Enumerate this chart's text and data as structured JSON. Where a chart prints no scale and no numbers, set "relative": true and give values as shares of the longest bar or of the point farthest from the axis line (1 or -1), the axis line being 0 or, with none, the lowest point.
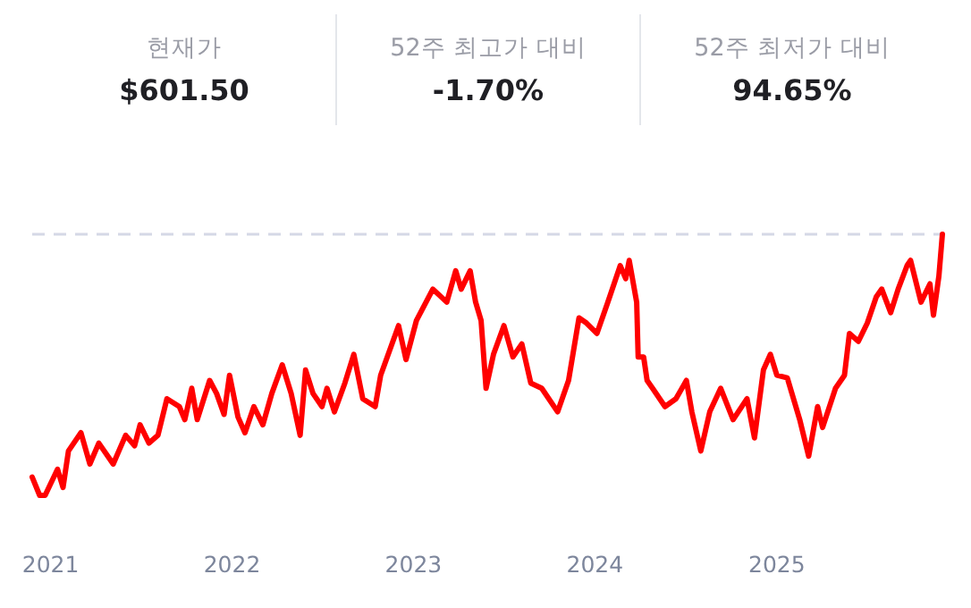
{
  "chart_data": [
    {
      "type": "other",
      "categories": [
        "현재가",
        "52주 최고가 대비",
        "52주 최저가 대비"
      ],
      "value_labels": [
        "$601.50",
        "-1.70%",
        "94.65%"
      ]
    },
    {
      "type": "line",
      "relative": true,
      "color": "#ff0000",
      "x": [
        "2020-11-25",
        "2020-12-10",
        "2020-12-21",
        "2021-01-15",
        "2021-01-26",
        "2021-02-06",
        "2021-03-03",
        "2021-03-21",
        "2021-04-08",
        "2021-05-07",
        "2021-06-01",
        "2021-06-19",
        "2021-06-30",
        "2021-07-18",
        "2021-08-05",
        "2021-08-23",
        "2021-09-17",
        "2021-09-28",
        "2021-10-12",
        "2021-10-23",
        "2021-11-17",
        "2021-12-01",
        "2021-12-16",
        "2021-12-27",
        "2022-01-13",
        "2022-01-27",
        "2022-02-14",
        "2022-03-04",
        "2022-03-22",
        "2022-04-12",
        "2022-04-30",
        "2022-05-18",
        "2022-05-29",
        "2022-06-13",
        "2022-07-01",
        "2022-07-11",
        "2022-07-26",
        "2022-08-16",
        "2022-09-03",
        "2022-09-21",
        "2022-10-16",
        "2022-10-27",
        "2022-12-02",
        "2022-12-17",
        "2023-01-07",
        "2023-02-09",
        "2023-03-09",
        "2023-03-27",
        "2023-04-07",
        "2023-04-25",
        "2023-05-06",
        "2023-05-17",
        "2023-05-27",
        "2023-06-11",
        "2023-07-02",
        "2023-07-20",
        "2023-08-07",
        "2023-08-25",
        "2023-09-16",
        "2023-10-18",
        "2023-11-09",
        "2023-11-30",
        "2023-12-15",
        "2024-01-05",
        "2024-01-27",
        "2024-02-21",
        "2024-03-03",
        "2024-03-10",
        "2024-03-25",
        "2024-03-28",
        "2024-04-08",
        "2024-04-15",
        "2024-04-26",
        "2024-05-21",
        "2024-06-12",
        "2024-07-03",
        "2024-07-14",
        "2024-08-01",
        "2024-08-19",
        "2024-09-10",
        "2024-10-05",
        "2024-11-02",
        "2024-11-17",
        "2024-12-05",
        "2024-12-19",
        "2025-01-01",
        "2025-01-22",
        "2025-02-16",
        "2025-03-06",
        "2025-03-24",
        "2025-04-03",
        "2025-04-29",
        "2025-05-17",
        "2025-05-27",
        "2025-06-14",
        "2025-07-02",
        "2025-07-20",
        "2025-07-31",
        "2025-08-18",
        "2025-09-02",
        "2025-09-20",
        "2025-09-27",
        "2025-10-18",
        "2025-11-05",
        "2025-11-12",
        "2025-11-23",
        "2025-11-30"
      ],
      "values": [
        0.07,
        0,
        0,
        0.1,
        0.03,
        0.17,
        0.24,
        0.12,
        0.2,
        0.12,
        0.23,
        0.19,
        0.27,
        0.2,
        0.23,
        0.37,
        0.34,
        0.29,
        0.41,
        0.29,
        0.44,
        0.39,
        0.31,
        0.46,
        0.3,
        0.24,
        0.34,
        0.27,
        0.39,
        0.5,
        0.39,
        0.23,
        0.48,
        0.39,
        0.34,
        0.41,
        0.32,
        0.43,
        0.54,
        0.37,
        0.34,
        0.46,
        0.65,
        0.52,
        0.67,
        0.79,
        0.74,
        0.86,
        0.79,
        0.86,
        0.74,
        0.67,
        0.41,
        0.54,
        0.65,
        0.53,
        0.58,
        0.43,
        0.41,
        0.32,
        0.44,
        0.68,
        0.66,
        0.62,
        0.74,
        0.88,
        0.83,
        0.9,
        0.74,
        0.53,
        0.53,
        0.44,
        0.41,
        0.34,
        0.37,
        0.44,
        0.32,
        0.17,
        0.32,
        0.41,
        0.29,
        0.37,
        0.22,
        0.48,
        0.54,
        0.46,
        0.45,
        0.29,
        0.15,
        0.34,
        0.26,
        0.41,
        0.46,
        0.62,
        0.59,
        0.66,
        0.76,
        0.79,
        0.7,
        0.79,
        0.88,
        0.9,
        0.74,
        0.81,
        0.69,
        0.84,
        1
      ],
      "xlim": [
        "2020-11-25",
        "2025-11-30"
      ],
      "xticks": [
        {
          "value": "2021-01-01",
          "label": "2021"
        },
        {
          "value": "2022-01-01",
          "label": "2022"
        },
        {
          "value": "2023-01-01",
          "label": "2023"
        },
        {
          "value": "2024-01-01",
          "label": "2024"
        },
        {
          "value": "2025-01-01",
          "label": "2025"
        }
      ],
      "ref_lines": [
        {
          "axis": "y",
          "value": 1,
          "color": "#d5d8e6",
          "line_style": "dashed"
        }
      ]
    }
  ]
}
